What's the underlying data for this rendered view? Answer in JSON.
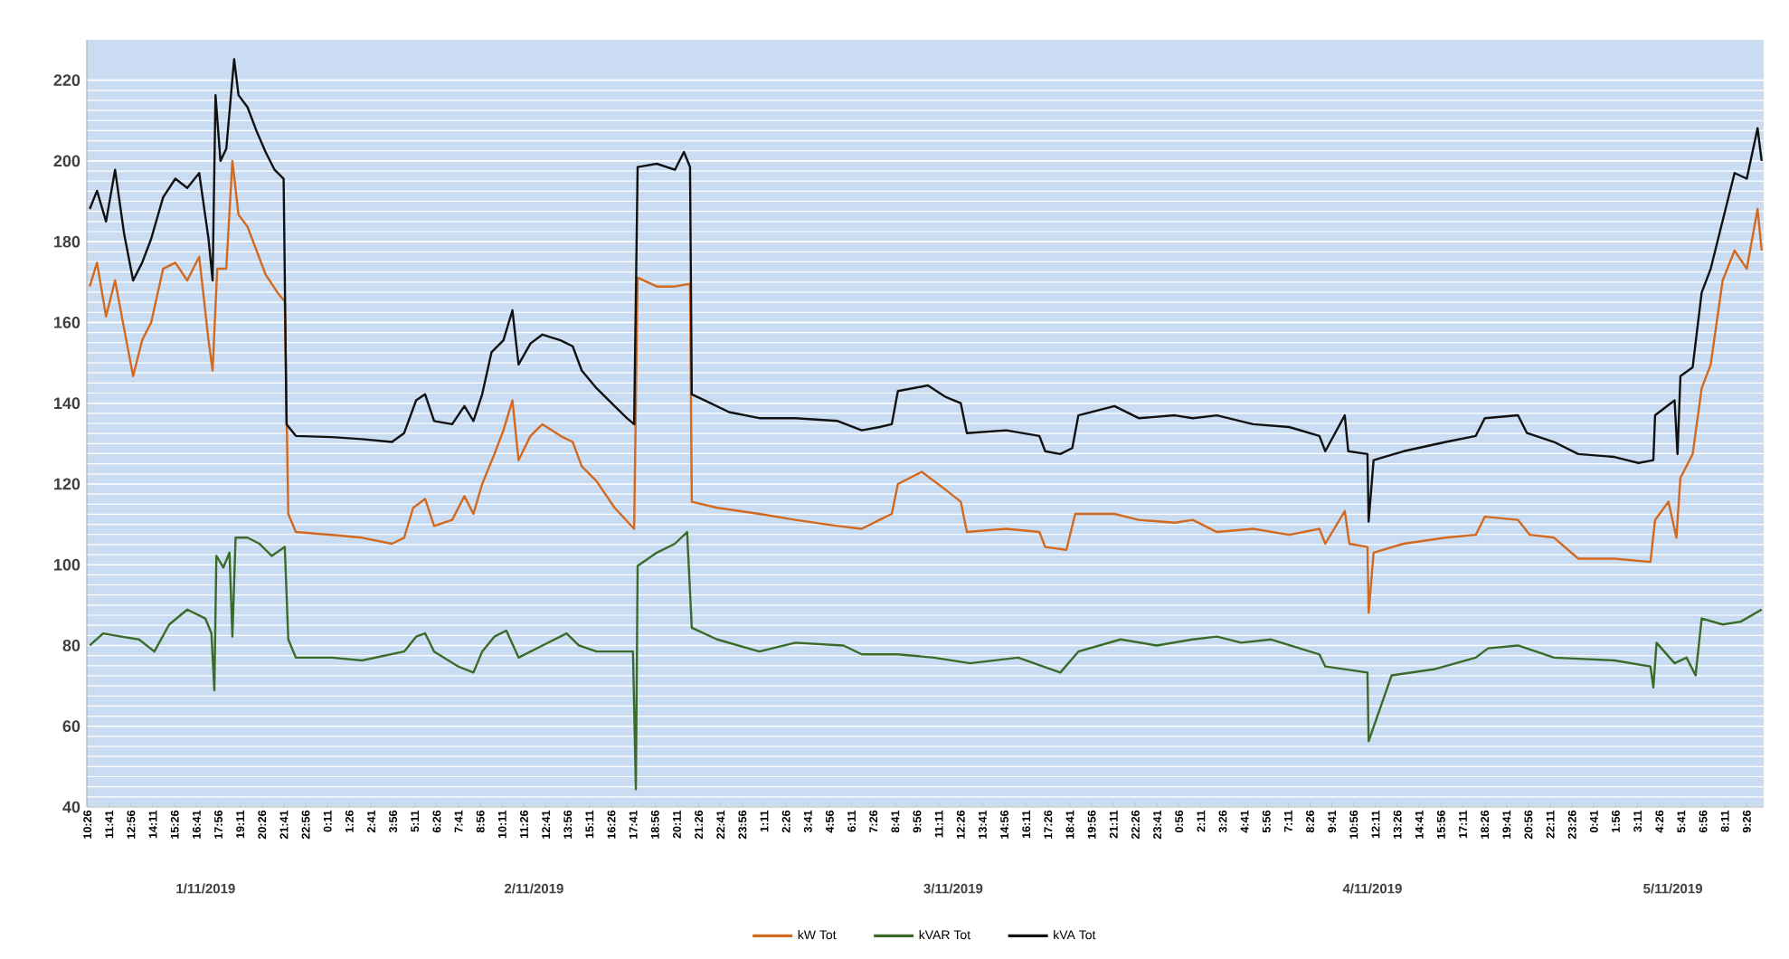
{
  "chart_data": {
    "type": "line",
    "xlim": [
      "2019-11-01T10:24",
      "2019-11-05T10:24"
    ],
    "ylim": [
      40,
      230
    ],
    "yticks": [
      40,
      60,
      80,
      100,
      120,
      140,
      160,
      180,
      200,
      220
    ],
    "grid": "y",
    "legend": "bottom",
    "marker": "none",
    "xticks": [
      {
        "value": "2019-11-01T10:26",
        "label": "10:26"
      },
      {
        "value": "2019-11-01T11:41",
        "label": "11:41"
      },
      {
        "value": "2019-11-01T12:56",
        "label": "12:56"
      },
      {
        "value": "2019-11-01T14:11",
        "label": "14:11"
      },
      {
        "value": "2019-11-01T15:26",
        "label": "15:26"
      },
      {
        "value": "2019-11-01T16:41",
        "label": "16:41"
      },
      {
        "value": "2019-11-01T17:56",
        "label": "17:56"
      },
      {
        "value": "2019-11-01T19:11",
        "label": "19:11"
      },
      {
        "value": "2019-11-01T20:26",
        "label": "20:26"
      },
      {
        "value": "2019-11-01T21:41",
        "label": "21:41"
      },
      {
        "value": "2019-11-01T22:56",
        "label": "22:56"
      },
      {
        "value": "2019-11-02T00:11",
        "label": "0:11"
      },
      {
        "value": "2019-11-02T01:26",
        "label": "1:26"
      },
      {
        "value": "2019-11-02T02:41",
        "label": "2:41"
      },
      {
        "value": "2019-11-02T03:56",
        "label": "3:56"
      },
      {
        "value": "2019-11-02T05:11",
        "label": "5:11"
      },
      {
        "value": "2019-11-02T06:26",
        "label": "6:26"
      },
      {
        "value": "2019-11-02T07:41",
        "label": "7:41"
      },
      {
        "value": "2019-11-02T08:56",
        "label": "8:56"
      },
      {
        "value": "2019-11-02T10:11",
        "label": "10:11"
      },
      {
        "value": "2019-11-02T11:26",
        "label": "11:26"
      },
      {
        "value": "2019-11-02T12:41",
        "label": "12:41"
      },
      {
        "value": "2019-11-02T13:56",
        "label": "13:56"
      },
      {
        "value": "2019-11-02T15:11",
        "label": "15:11"
      },
      {
        "value": "2019-11-02T16:26",
        "label": "16:26"
      },
      {
        "value": "2019-11-02T17:41",
        "label": "17:41"
      },
      {
        "value": "2019-11-02T18:56",
        "label": "18:56"
      },
      {
        "value": "2019-11-02T20:11",
        "label": "20:11"
      },
      {
        "value": "2019-11-02T21:26",
        "label": "21:26"
      },
      {
        "value": "2019-11-02T22:41",
        "label": "22:41"
      },
      {
        "value": "2019-11-02T23:56",
        "label": "23:56"
      },
      {
        "value": "2019-11-03T01:11",
        "label": "1:11"
      },
      {
        "value": "2019-11-03T02:26",
        "label": "2:26"
      },
      {
        "value": "2019-11-03T03:41",
        "label": "3:41"
      },
      {
        "value": "2019-11-03T04:56",
        "label": "4:56"
      },
      {
        "value": "2019-11-03T06:11",
        "label": "6:11"
      },
      {
        "value": "2019-11-03T07:26",
        "label": "7:26"
      },
      {
        "value": "2019-11-03T08:41",
        "label": "8:41"
      },
      {
        "value": "2019-11-03T09:56",
        "label": "9:56"
      },
      {
        "value": "2019-11-03T11:11",
        "label": "11:11"
      },
      {
        "value": "2019-11-03T12:26",
        "label": "12:26"
      },
      {
        "value": "2019-11-03T13:41",
        "label": "13:41"
      },
      {
        "value": "2019-11-03T14:56",
        "label": "14:56"
      },
      {
        "value": "2019-11-03T16:11",
        "label": "16:11"
      },
      {
        "value": "2019-11-03T17:26",
        "label": "17:26"
      },
      {
        "value": "2019-11-03T18:41",
        "label": "18:41"
      },
      {
        "value": "2019-11-03T19:56",
        "label": "19:56"
      },
      {
        "value": "2019-11-03T21:11",
        "label": "21:11"
      },
      {
        "value": "2019-11-03T22:26",
        "label": "22:26"
      },
      {
        "value": "2019-11-03T23:41",
        "label": "23:41"
      },
      {
        "value": "2019-11-04T00:56",
        "label": "0:56"
      },
      {
        "value": "2019-11-04T02:11",
        "label": "2:11"
      },
      {
        "value": "2019-11-04T03:26",
        "label": "3:26"
      },
      {
        "value": "2019-11-04T04:41",
        "label": "4:41"
      },
      {
        "value": "2019-11-04T05:56",
        "label": "5:56"
      },
      {
        "value": "2019-11-04T07:11",
        "label": "7:11"
      },
      {
        "value": "2019-11-04T08:26",
        "label": "8:26"
      },
      {
        "value": "2019-11-04T09:41",
        "label": "9:41"
      },
      {
        "value": "2019-11-04T10:56",
        "label": "10:56"
      },
      {
        "value": "2019-11-04T12:11",
        "label": "12:11"
      },
      {
        "value": "2019-11-04T13:26",
        "label": "13:26"
      },
      {
        "value": "2019-11-04T14:41",
        "label": "14:41"
      },
      {
        "value": "2019-11-04T15:56",
        "label": "15:56"
      },
      {
        "value": "2019-11-04T17:11",
        "label": "17:11"
      },
      {
        "value": "2019-11-04T18:26",
        "label": "18:26"
      },
      {
        "value": "2019-11-04T19:41",
        "label": "19:41"
      },
      {
        "value": "2019-11-04T20:56",
        "label": "20:56"
      },
      {
        "value": "2019-11-04T22:11",
        "label": "22:11"
      },
      {
        "value": "2019-11-04T23:26",
        "label": "23:26"
      },
      {
        "value": "2019-11-05T00:41",
        "label": "0:41"
      },
      {
        "value": "2019-11-05T01:56",
        "label": "1:56"
      },
      {
        "value": "2019-11-05T03:11",
        "label": "3:11"
      },
      {
        "value": "2019-11-05T04:26",
        "label": "4:26"
      },
      {
        "value": "2019-11-05T05:41",
        "label": "5:41"
      },
      {
        "value": "2019-11-05T06:56",
        "label": "6:56"
      },
      {
        "value": "2019-11-05T08:11",
        "label": "8:11"
      },
      {
        "value": "2019-11-05T09:26",
        "label": "9:26"
      }
    ],
    "annotations": [
      "1/11/2019",
      "2/11/2019",
      "3/11/2019",
      "4/11/2019",
      "5/11/2019"
    ],
    "series": [
      {
        "name": "kW Tot",
        "color": "#d2691e",
        "x": [
          "2019-11-01T10:34",
          "2019-11-01T10:59",
          "2019-11-01T11:30",
          "2019-11-01T12:01",
          "2019-11-01T12:32",
          "2019-11-01T13:03",
          "2019-11-01T13:34",
          "2019-11-01T14:05",
          "2019-11-01T14:46",
          "2019-11-01T15:28",
          "2019-11-01T16:09",
          "2019-11-01T16:50",
          "2019-11-01T17:22",
          "2019-11-01T17:36",
          "2019-11-01T17:52",
          "2019-11-01T18:23",
          "2019-11-01T18:44",
          "2019-11-01T19:05",
          "2019-11-01T19:36",
          "2019-11-01T20:07",
          "2019-11-01T20:38",
          "2019-11-01T21:19",
          "2019-11-01T21:44",
          "2019-11-01T21:56",
          "2019-11-01T22:22",
          "2019-11-02T00:26",
          "2019-11-02T02:09",
          "2019-11-02T03:52",
          "2019-11-02T04:34",
          "2019-11-02T05:05",
          "2019-11-02T05:46",
          "2019-11-02T06:17",
          "2019-11-02T07:19",
          "2019-11-02T08:01",
          "2019-11-02T08:32",
          "2019-11-02T09:02",
          "2019-11-02T09:44",
          "2019-11-02T10:15",
          "2019-11-02T10:46",
          "2019-11-02T11:07",
          "2019-11-02T11:48",
          "2019-11-02T12:29",
          "2019-11-02T13:31",
          "2019-11-02T14:13",
          "2019-11-02T14:44",
          "2019-11-02T15:35",
          "2019-11-02T16:37",
          "2019-11-02T17:44",
          "2019-11-02T17:56",
          "2019-11-02T19:02",
          "2019-11-02T20:04",
          "2019-11-02T20:56",
          "2019-11-02T21:02",
          "2019-11-02T22:29",
          "2019-11-03T00:54",
          "2019-11-03T02:58",
          "2019-11-03T05:23",
          "2019-11-03T06:46",
          "2019-11-03T07:47",
          "2019-11-03T08:29",
          "2019-11-03T08:50",
          "2019-11-03T10:12",
          "2019-11-03T11:35",
          "2019-11-03T12:26",
          "2019-11-03T12:47",
          "2019-11-03T15:02",
          "2019-11-03T16:56",
          "2019-11-03T17:16",
          "2019-11-03T18:29",
          "2019-11-03T18:59",
          "2019-11-03T21:14",
          "2019-11-03T22:37",
          "2019-11-04T00:41",
          "2019-11-04T01:43",
          "2019-11-04T03:06",
          "2019-11-04T05:10",
          "2019-11-04T07:14",
          "2019-11-04T08:58",
          "2019-11-04T09:18",
          "2019-11-04T10:25",
          "2019-11-04T10:41",
          "2019-11-04T11:43",
          "2019-11-04T11:47",
          "2019-11-04T12:04",
          "2019-11-04T13:47",
          "2019-11-04T16:12",
          "2019-11-04T17:55",
          "2019-11-04T18:26",
          "2019-11-04T20:20",
          "2019-11-04T21:01",
          "2019-11-04T22:24",
          "2019-11-04T23:47",
          "2019-11-05T01:51",
          "2019-11-05T03:55",
          "2019-11-05T04:11",
          "2019-11-05T04:57",
          "2019-11-05T05:24",
          "2019-11-05T05:38",
          "2019-11-05T06:20",
          "2019-11-05T06:51",
          "2019-11-05T07:22",
          "2019-11-05T08:03",
          "2019-11-05T08:44",
          "2019-11-05T09:26",
          "2019-11-05T10:03",
          "2019-11-05T10:17"
        ],
        "values": [
          168.9,
          174.8,
          161.5,
          170.4,
          158.5,
          146.7,
          155.6,
          160,
          173.3,
          174.8,
          170.4,
          176.3,
          155.6,
          148.1,
          173.3,
          173.3,
          200,
          186.7,
          183.7,
          177.8,
          171.9,
          167.4,
          165.2,
          112.6,
          108.1,
          107.4,
          106.7,
          105.2,
          106.7,
          114.1,
          116.3,
          109.6,
          111.1,
          117,
          112.6,
          120,
          127.4,
          133.3,
          140.7,
          125.9,
          131.9,
          134.8,
          131.9,
          130.4,
          124.4,
          120.7,
          114.1,
          108.9,
          171.1,
          168.9,
          168.9,
          169.6,
          115.6,
          114.1,
          112.6,
          111.1,
          109.6,
          108.9,
          111.1,
          112.6,
          120,
          123,
          118.5,
          115.6,
          108.1,
          108.9,
          108.1,
          104.4,
          103.7,
          112.6,
          112.6,
          111.1,
          110.4,
          111.1,
          108.1,
          108.9,
          107.4,
          108.9,
          105.2,
          113.3,
          105.2,
          104.4,
          88.1,
          103,
          105.2,
          106.7,
          107.4,
          111.9,
          111.1,
          107.4,
          106.7,
          101.5,
          101.5,
          100.7,
          111.1,
          115.6,
          106.7,
          121.5,
          127.4,
          143.7,
          149.6,
          170.4,
          177.8,
          173.3,
          188.1,
          177.8
        ]
      },
      {
        "name": "kVAR Tot",
        "color": "#3a6b28",
        "x": [
          "2019-11-01T10:34",
          "2019-11-01T11:20",
          "2019-11-01T12:22",
          "2019-11-01T13:23",
          "2019-11-01T14:16",
          "2019-11-01T15:07",
          "2019-11-01T16:09",
          "2019-11-01T17:11",
          "2019-11-01T17:32",
          "2019-11-01T17:42",
          "2019-11-01T17:49",
          "2019-11-01T18:13",
          "2019-11-01T18:34",
          "2019-11-01T18:44",
          "2019-11-01T18:55",
          "2019-11-01T19:36",
          "2019-11-01T20:17",
          "2019-11-01T20:59",
          "2019-11-01T21:44",
          "2019-11-01T21:56",
          "2019-11-01T22:22",
          "2019-11-02T00:26",
          "2019-11-02T02:09",
          "2019-11-02T04:34",
          "2019-11-02T05:15",
          "2019-11-02T05:46",
          "2019-11-02T06:17",
          "2019-11-02T07:40",
          "2019-11-02T08:32",
          "2019-11-02T09:02",
          "2019-11-02T09:44",
          "2019-11-02T10:25",
          "2019-11-02T11:07",
          "2019-11-02T12:29",
          "2019-11-02T13:52",
          "2019-11-02T14:34",
          "2019-11-02T15:35",
          "2019-11-02T17:40",
          "2019-11-02T17:50",
          "2019-11-02T17:56",
          "2019-11-02T19:02",
          "2019-11-02T20:04",
          "2019-11-02T20:46",
          "2019-11-02T21:02",
          "2019-11-02T22:29",
          "2019-11-03T00:54",
          "2019-11-03T02:58",
          "2019-11-03T05:43",
          "2019-11-03T06:46",
          "2019-11-03T08:50",
          "2019-11-03T10:53",
          "2019-11-03T12:58",
          "2019-11-03T15:43",
          "2019-11-03T18:08",
          "2019-11-03T19:10",
          "2019-11-03T21:35",
          "2019-11-03T23:39",
          "2019-11-04T01:43",
          "2019-11-04T03:06",
          "2019-11-04T04:29",
          "2019-11-04T06:12",
          "2019-11-04T08:58",
          "2019-11-04T09:18",
          "2019-11-04T11:43",
          "2019-11-04T11:47",
          "2019-11-04T13:06",
          "2019-11-04T15:31",
          "2019-11-04T17:55",
          "2019-11-04T18:37",
          "2019-11-04T20:20",
          "2019-11-04T22:24",
          "2019-11-05T01:51",
          "2019-11-05T03:55",
          "2019-11-05T04:05",
          "2019-11-05T04:16",
          "2019-11-05T05:18",
          "2019-11-05T05:59",
          "2019-11-05T06:30",
          "2019-11-05T06:51",
          "2019-11-05T08:03",
          "2019-11-05T09:05",
          "2019-11-05T10:17"
        ],
        "values": [
          80,
          83,
          82.2,
          81.5,
          78.5,
          85.2,
          88.9,
          86.7,
          83,
          68.9,
          102.2,
          99.3,
          103,
          82.2,
          106.7,
          106.7,
          105.2,
          102.2,
          104.4,
          81.5,
          77,
          77,
          76.3,
          78.5,
          82.2,
          83,
          78.5,
          74.8,
          73.3,
          78.5,
          82.2,
          83.7,
          77,
          80,
          83,
          80,
          78.5,
          78.5,
          44.4,
          99.7,
          103,
          105.2,
          108.1,
          84.4,
          81.5,
          78.5,
          80.7,
          80,
          77.8,
          77.8,
          77,
          75.6,
          77,
          73.3,
          78.5,
          81.5,
          80,
          81.5,
          82.2,
          80.7,
          81.5,
          77.8,
          74.8,
          73.3,
          56.3,
          72.6,
          74.1,
          77,
          79.3,
          80,
          77,
          76.3,
          74.8,
          69.6,
          80.7,
          75.6,
          77,
          72.6,
          86.7,
          85.2,
          85.9,
          88.9
        ]
      },
      {
        "name": "kVA Tot",
        "color": "#111111",
        "x": [
          "2019-11-01T10:34",
          "2019-11-01T10:59",
          "2019-11-01T11:30",
          "2019-11-01T12:01",
          "2019-11-01T12:32",
          "2019-11-01T13:03",
          "2019-11-01T13:34",
          "2019-11-01T14:05",
          "2019-11-01T14:46",
          "2019-11-01T15:28",
          "2019-11-01T16:09",
          "2019-11-01T16:50",
          "2019-11-01T17:22",
          "2019-11-01T17:36",
          "2019-11-01T17:46",
          "2019-11-01T18:03",
          "2019-11-01T18:23",
          "2019-11-01T18:50",
          "2019-11-01T19:05",
          "2019-11-01T19:36",
          "2019-11-01T20:07",
          "2019-11-01T20:38",
          "2019-11-01T21:09",
          "2019-11-01T21:40",
          "2019-11-01T21:50",
          "2019-11-01T22:22",
          "2019-11-02T00:26",
          "2019-11-02T02:09",
          "2019-11-02T03:52",
          "2019-11-02T04:34",
          "2019-11-02T05:15",
          "2019-11-02T05:46",
          "2019-11-02T06:17",
          "2019-11-02T07:19",
          "2019-11-02T08:01",
          "2019-11-02T08:32",
          "2019-11-02T09:02",
          "2019-11-02T09:34",
          "2019-11-02T10:15",
          "2019-11-02T10:46",
          "2019-11-02T11:07",
          "2019-11-02T11:48",
          "2019-11-02T12:29",
          "2019-11-02T13:31",
          "2019-11-02T14:13",
          "2019-11-02T14:44",
          "2019-11-02T15:35",
          "2019-11-02T16:37",
          "2019-11-02T17:19",
          "2019-11-02T17:44",
          "2019-11-02T17:56",
          "2019-11-02T19:02",
          "2019-11-02T20:04",
          "2019-11-02T20:35",
          "2019-11-02T20:56",
          "2019-11-02T21:02",
          "2019-11-02T21:47",
          "2019-11-02T23:10",
          "2019-11-03T00:54",
          "2019-11-03T02:58",
          "2019-11-03T05:23",
          "2019-11-03T06:46",
          "2019-11-03T07:47",
          "2019-11-03T08:29",
          "2019-11-03T08:50",
          "2019-11-03T10:33",
          "2019-11-03T11:35",
          "2019-11-03T12:26",
          "2019-11-03T12:47",
          "2019-11-03T15:02",
          "2019-11-03T16:56",
          "2019-11-03T17:16",
          "2019-11-03T18:08",
          "2019-11-03T18:49",
          "2019-11-03T19:10",
          "2019-11-03T21:14",
          "2019-11-03T22:37",
          "2019-11-04T00:41",
          "2019-11-04T01:43",
          "2019-11-04T03:06",
          "2019-11-04T05:10",
          "2019-11-04T07:14",
          "2019-11-04T08:58",
          "2019-11-04T09:18",
          "2019-11-04T10:25",
          "2019-11-04T10:37",
          "2019-11-04T11:43",
          "2019-11-04T11:47",
          "2019-11-04T12:04",
          "2019-11-04T13:47",
          "2019-11-04T16:12",
          "2019-11-04T17:55",
          "2019-11-04T18:26",
          "2019-11-04T20:20",
          "2019-11-04T20:51",
          "2019-11-04T22:24",
          "2019-11-04T23:47",
          "2019-11-05T01:51",
          "2019-11-05T03:14",
          "2019-11-05T04:05",
          "2019-11-05T04:11",
          "2019-11-05T05:18",
          "2019-11-05T05:28",
          "2019-11-05T05:38",
          "2019-11-05T06:20",
          "2019-11-05T06:51",
          "2019-11-05T07:22",
          "2019-11-05T08:03",
          "2019-11-05T08:44",
          "2019-11-05T09:26",
          "2019-11-05T10:03",
          "2019-11-05T10:17"
        ],
        "values": [
          188.1,
          192.6,
          185,
          197.8,
          182,
          170.4,
          174.8,
          180.7,
          191,
          195.6,
          193.3,
          197,
          180.7,
          170.4,
          216.3,
          200,
          203,
          225.2,
          216.3,
          213.3,
          207.4,
          202.2,
          197.8,
          195.6,
          134.8,
          131.9,
          131.6,
          131.1,
          130.4,
          132.6,
          140.7,
          142.2,
          135.6,
          134.8,
          139.3,
          135.6,
          142.2,
          152.6,
          155.6,
          163,
          149.6,
          154.8,
          157,
          155.6,
          154.1,
          148.1,
          143.7,
          139.3,
          136.3,
          134.8,
          198.5,
          199.3,
          197.8,
          202.2,
          198.5,
          142.2,
          140.7,
          137.8,
          136.3,
          136.3,
          135.6,
          133.3,
          134.1,
          134.8,
          143,
          144.4,
          141.5,
          140,
          132.6,
          133.3,
          131.9,
          128.1,
          127.4,
          128.9,
          137,
          139.3,
          136.3,
          137,
          136.3,
          137,
          134.8,
          134.1,
          131.9,
          128.1,
          137,
          128.1,
          127.4,
          110.7,
          125.9,
          128.1,
          130.4,
          131.9,
          136.3,
          137,
          132.6,
          130.4,
          127.4,
          126.7,
          125.2,
          125.9,
          137,
          140.7,
          127.4,
          146.7,
          148.9,
          167.4,
          173.3,
          185.2,
          197,
          195.6,
          208.1,
          200
        ]
      }
    ]
  }
}
